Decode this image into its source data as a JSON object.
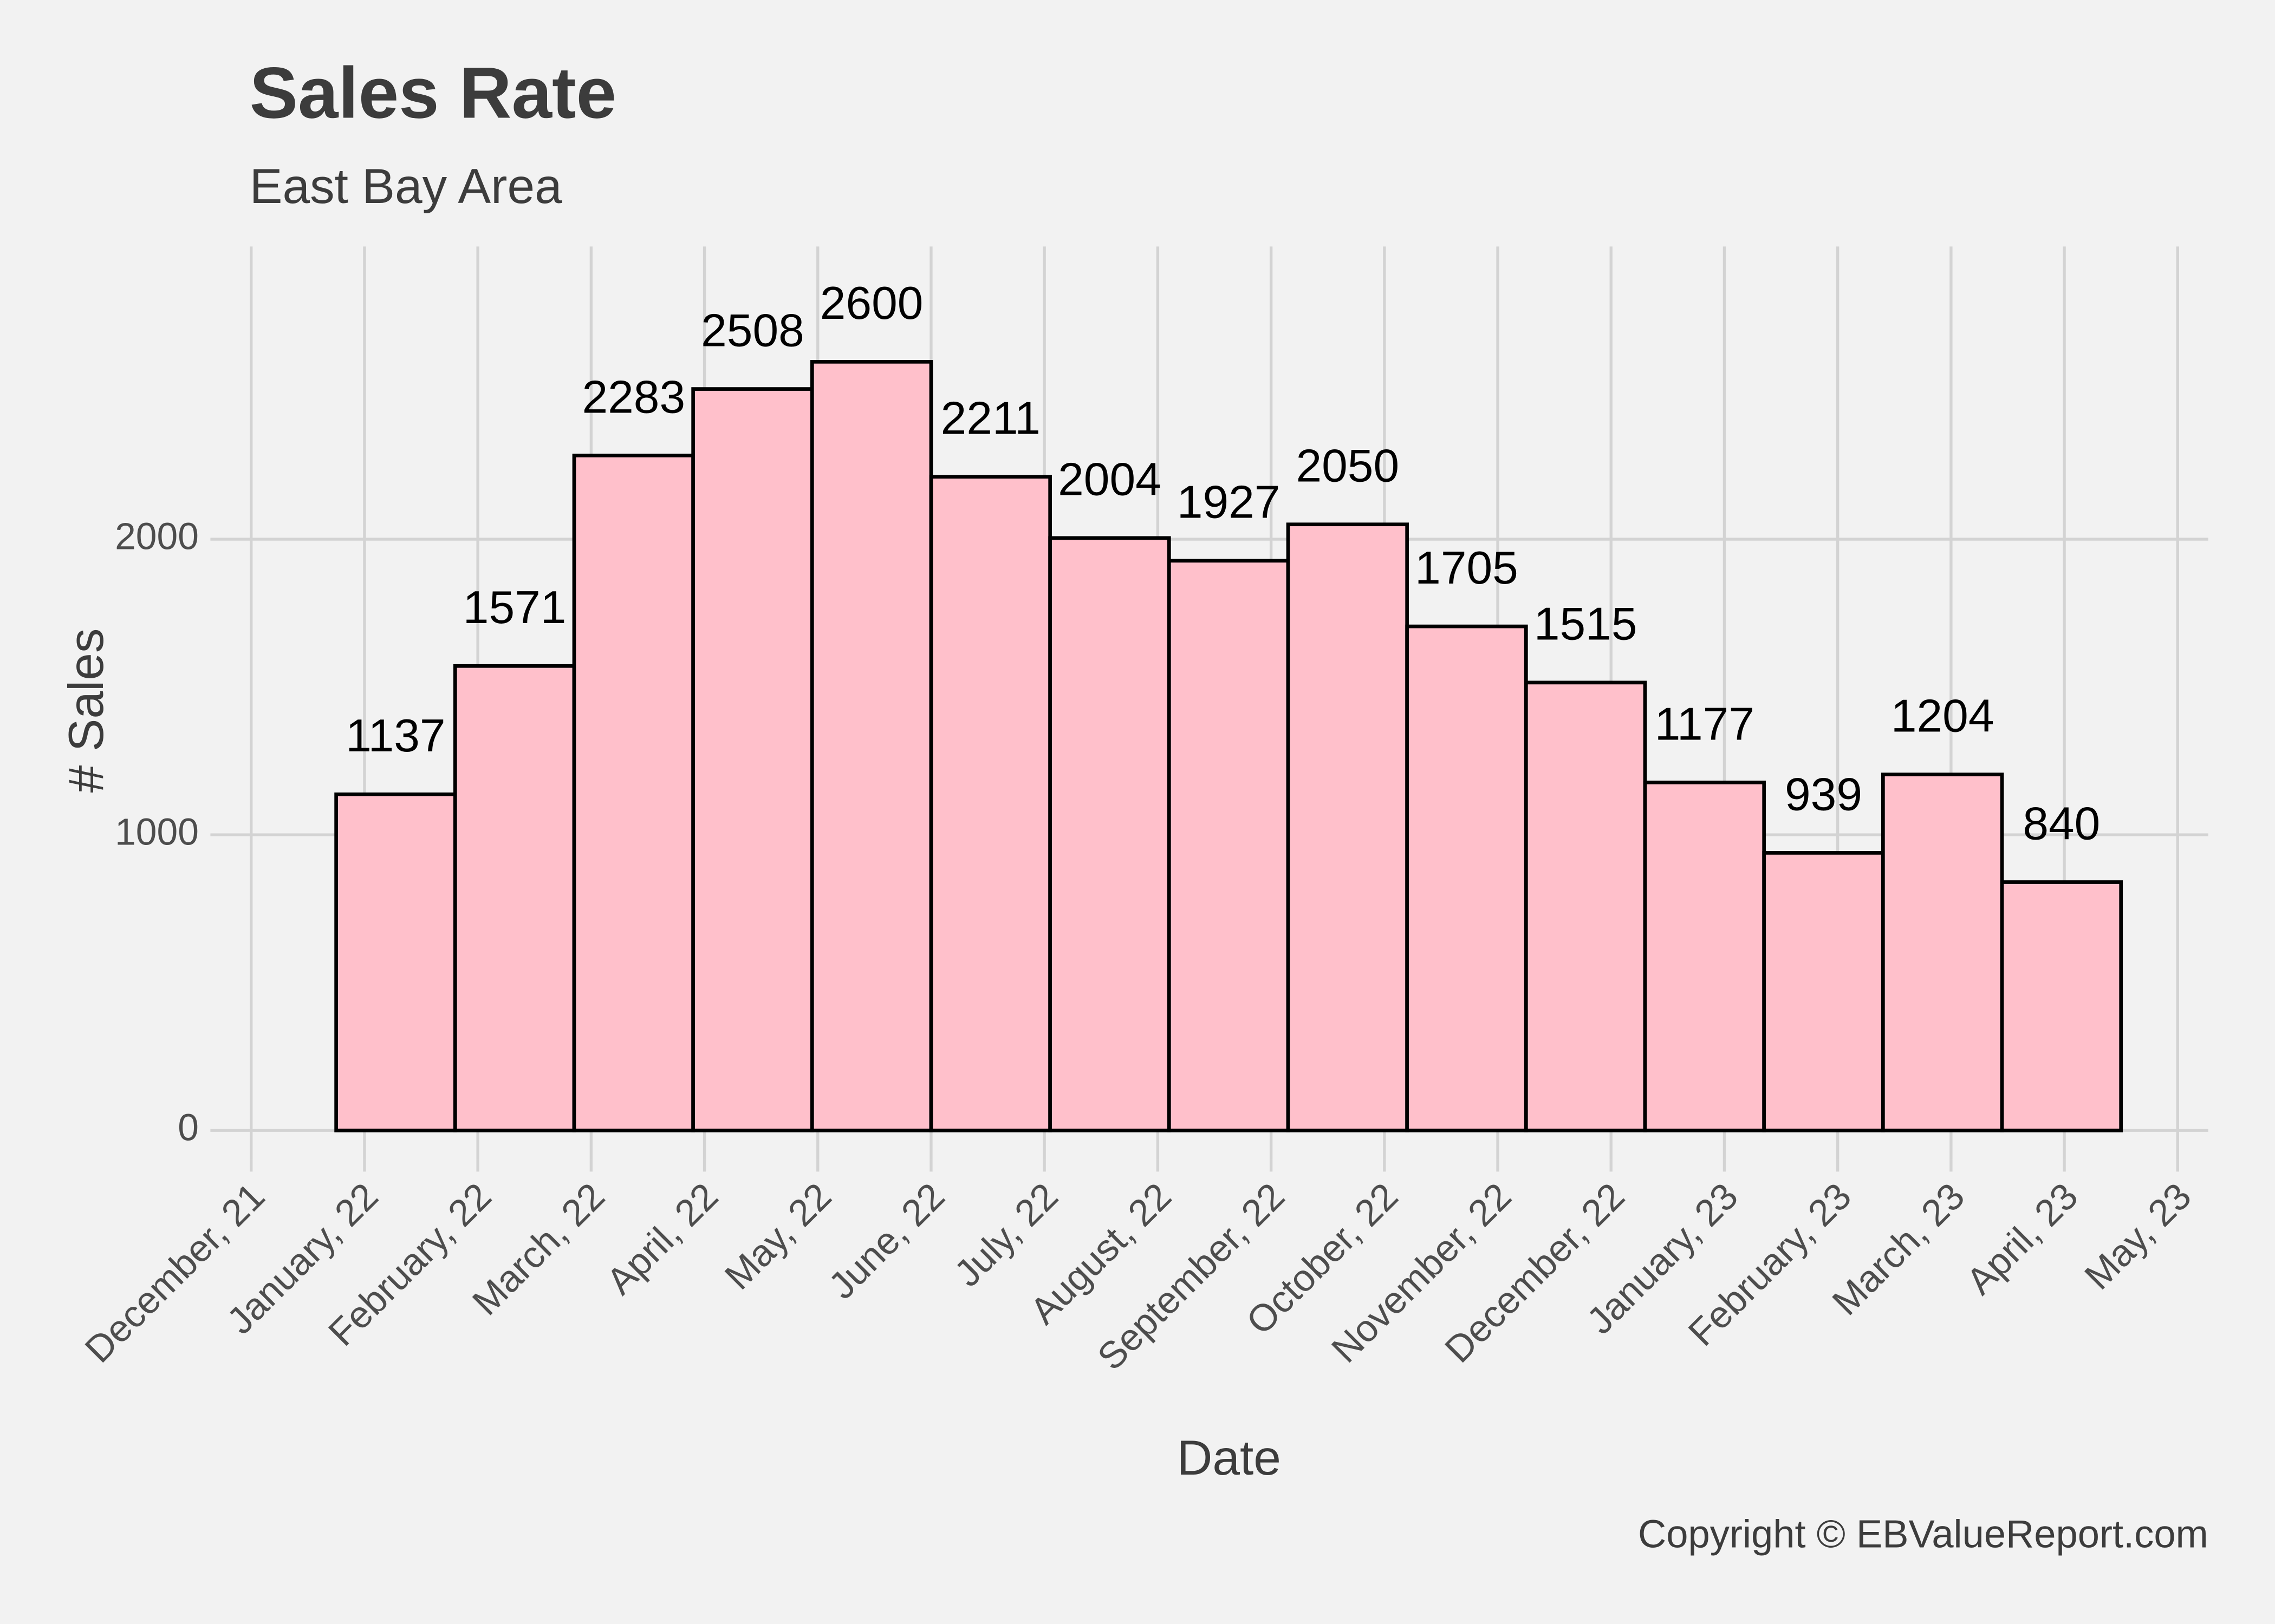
{
  "chart_data": {
    "type": "histogram",
    "title": "Sales Rate",
    "subtitle": "East Bay Area",
    "x_label": "Date",
    "y_label": "# Sales",
    "caption": "Copyright  © EBValueReport.com",
    "bins": [
      0.75,
      1.8,
      2.85,
      3.9,
      4.95,
      6,
      7.05,
      8.1,
      9.15,
      10.2,
      11.25,
      12.3,
      13.35,
      14.4,
      15.45,
      16.5
    ],
    "values": [
      1137,
      1571,
      2283,
      2508,
      2600,
      2211,
      2004,
      1927,
      2050,
      1705,
      1515,
      1177,
      939,
      1204,
      840
    ],
    "color": "#ffc0cb",
    "edge_color": "#000000",
    "xlim": [
      -0.36,
      17.27
    ],
    "xticks": [
      {
        "value": 0,
        "label": "December, 21"
      },
      {
        "value": 1,
        "label": "January, 22"
      },
      {
        "value": 2,
        "label": "February, 22"
      },
      {
        "value": 3,
        "label": "March, 22"
      },
      {
        "value": 4,
        "label": "April, 22"
      },
      {
        "value": 5,
        "label": "May, 22"
      },
      {
        "value": 6,
        "label": "June, 22"
      },
      {
        "value": 7,
        "label": "July, 22"
      },
      {
        "value": 8,
        "label": "August, 22"
      },
      {
        "value": 9,
        "label": "September, 22"
      },
      {
        "value": 10,
        "label": "October, 22"
      },
      {
        "value": 11,
        "label": "November, 22"
      },
      {
        "value": 12,
        "label": "December, 22"
      },
      {
        "value": 13,
        "label": "January, 23"
      },
      {
        "value": 14,
        "label": "February, 23"
      },
      {
        "value": 15,
        "label": "March, 23"
      },
      {
        "value": 16,
        "label": "April, 23"
      },
      {
        "value": 17,
        "label": "May, 23"
      }
    ],
    "ylim": [
      -100,
      2990
    ],
    "yticks": [
      0,
      1000,
      2000
    ],
    "grid": true
  }
}
